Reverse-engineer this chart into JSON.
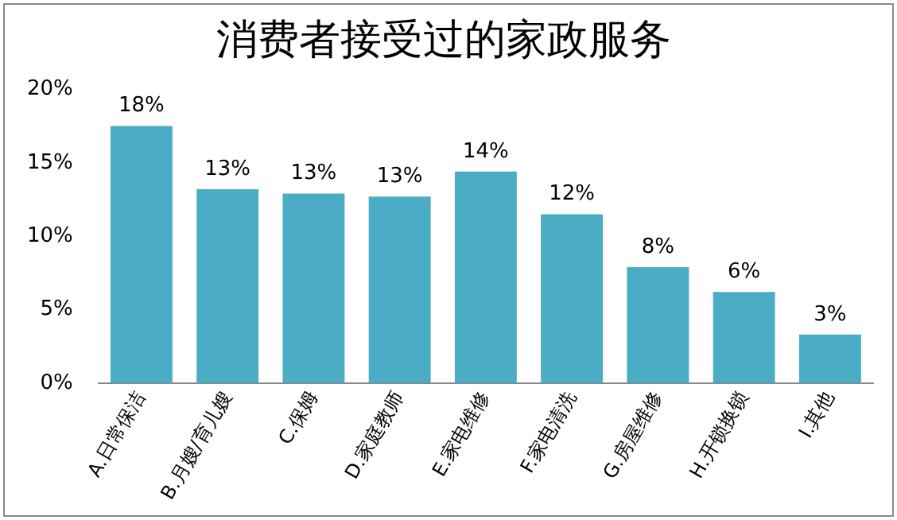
{
  "chart_data": {
    "type": "bar",
    "title": "消费者接受过的家政服务",
    "categories": [
      "A.日常保洁",
      "B.月嫂/育儿嫂",
      "C.保姆",
      "D.家庭教师",
      "E.家电维修",
      "F.家电清洗",
      "G.房屋维修",
      "H.开锁换锁",
      "I.其他"
    ],
    "values": [
      17.5,
      13.2,
      12.9,
      12.7,
      14.4,
      11.5,
      7.9,
      6.2,
      3.3
    ],
    "value_labels": [
      "18%",
      "13%",
      "13%",
      "13%",
      "14%",
      "12%",
      "8%",
      "6%",
      "3%"
    ],
    "color": "#4bacc6",
    "ylim": [
      0,
      20
    ],
    "yticks": [
      {
        "value": 0,
        "label": "0%"
      },
      {
        "value": 5,
        "label": "5%"
      },
      {
        "value": 10,
        "label": "10%"
      },
      {
        "value": 15,
        "label": "15%"
      },
      {
        "value": 20,
        "label": "20%"
      }
    ],
    "grid": false,
    "legend": false
  }
}
